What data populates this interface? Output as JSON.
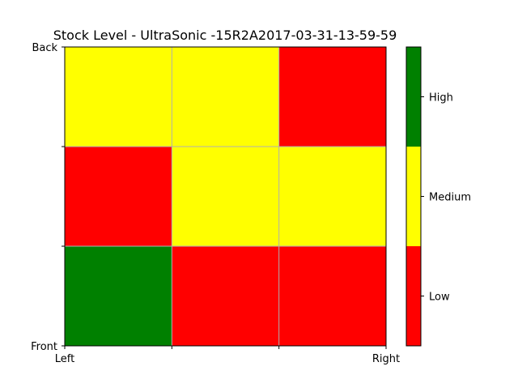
{
  "chart_data": {
    "type": "heatmap",
    "title": "Stock Level - UltraSonic -15R2A2017-03-31-13-59-59",
    "x_tick_labels": [
      "Left",
      "",
      "",
      "Right"
    ],
    "y_tick_labels": [
      "Front",
      "",
      "",
      "Back"
    ],
    "grid": true,
    "levels": [
      "Low",
      "Medium",
      "High"
    ],
    "level_colors": {
      "Low": "#ff0000",
      "Medium": "#ffff00",
      "High": "#008000"
    },
    "rows_top_to_bottom": [
      [
        "Medium",
        "Medium",
        "Low"
      ],
      [
        "Low",
        "Medium",
        "Medium"
      ],
      [
        "High",
        "Low",
        "Low"
      ]
    ],
    "colorbar": {
      "labels_bottom_to_top": [
        "Low",
        "Medium",
        "High"
      ],
      "placement": "right"
    }
  }
}
